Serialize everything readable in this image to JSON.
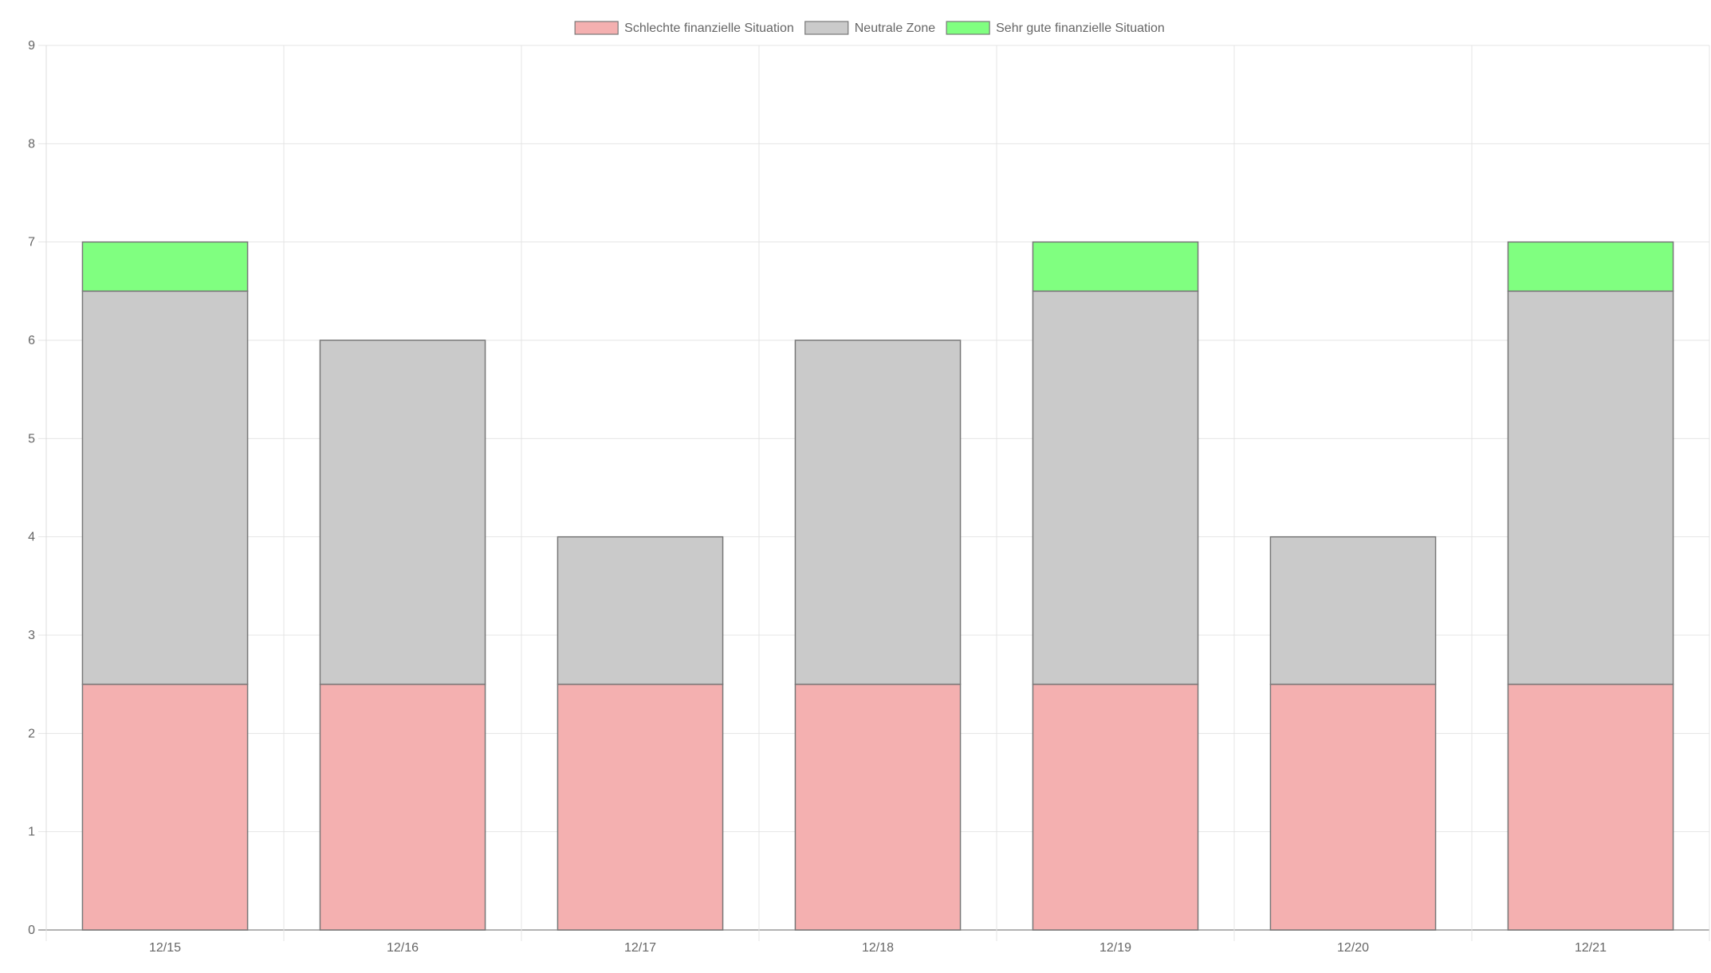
{
  "chart_data": {
    "type": "bar",
    "stacked": true,
    "title": "",
    "xlabel": "",
    "ylabel": "",
    "categories": [
      "12/15",
      "12/16",
      "12/17",
      "12/18",
      "12/19",
      "12/20",
      "12/21"
    ],
    "series": [
      {
        "name": "Schlechte finanzielle Situation",
        "color": "#f4b0b0",
        "values": [
          2.5,
          2.5,
          2.5,
          2.5,
          2.5,
          2.5,
          2.5
        ]
      },
      {
        "name": "Neutrale Zone",
        "color": "#cacaca",
        "values": [
          4,
          3.5,
          1.5,
          3.5,
          4,
          1.5,
          4
        ]
      },
      {
        "name": "Sehr gute finanzielle Situation",
        "color": "#80ff80",
        "values": [
          0.5,
          0,
          0,
          0,
          0.5,
          0,
          0.5
        ]
      }
    ],
    "ylim": [
      0,
      9
    ],
    "yticks": [
      "0",
      "1",
      "2",
      "3",
      "4",
      "5",
      "6",
      "7",
      "8",
      "9"
    ],
    "grid": true,
    "legend_position": "top-center",
    "bar_border_color": "#777777",
    "grid_color": "#e4e4e4",
    "axis_color": "#999999",
    "text_color": "#666666"
  }
}
